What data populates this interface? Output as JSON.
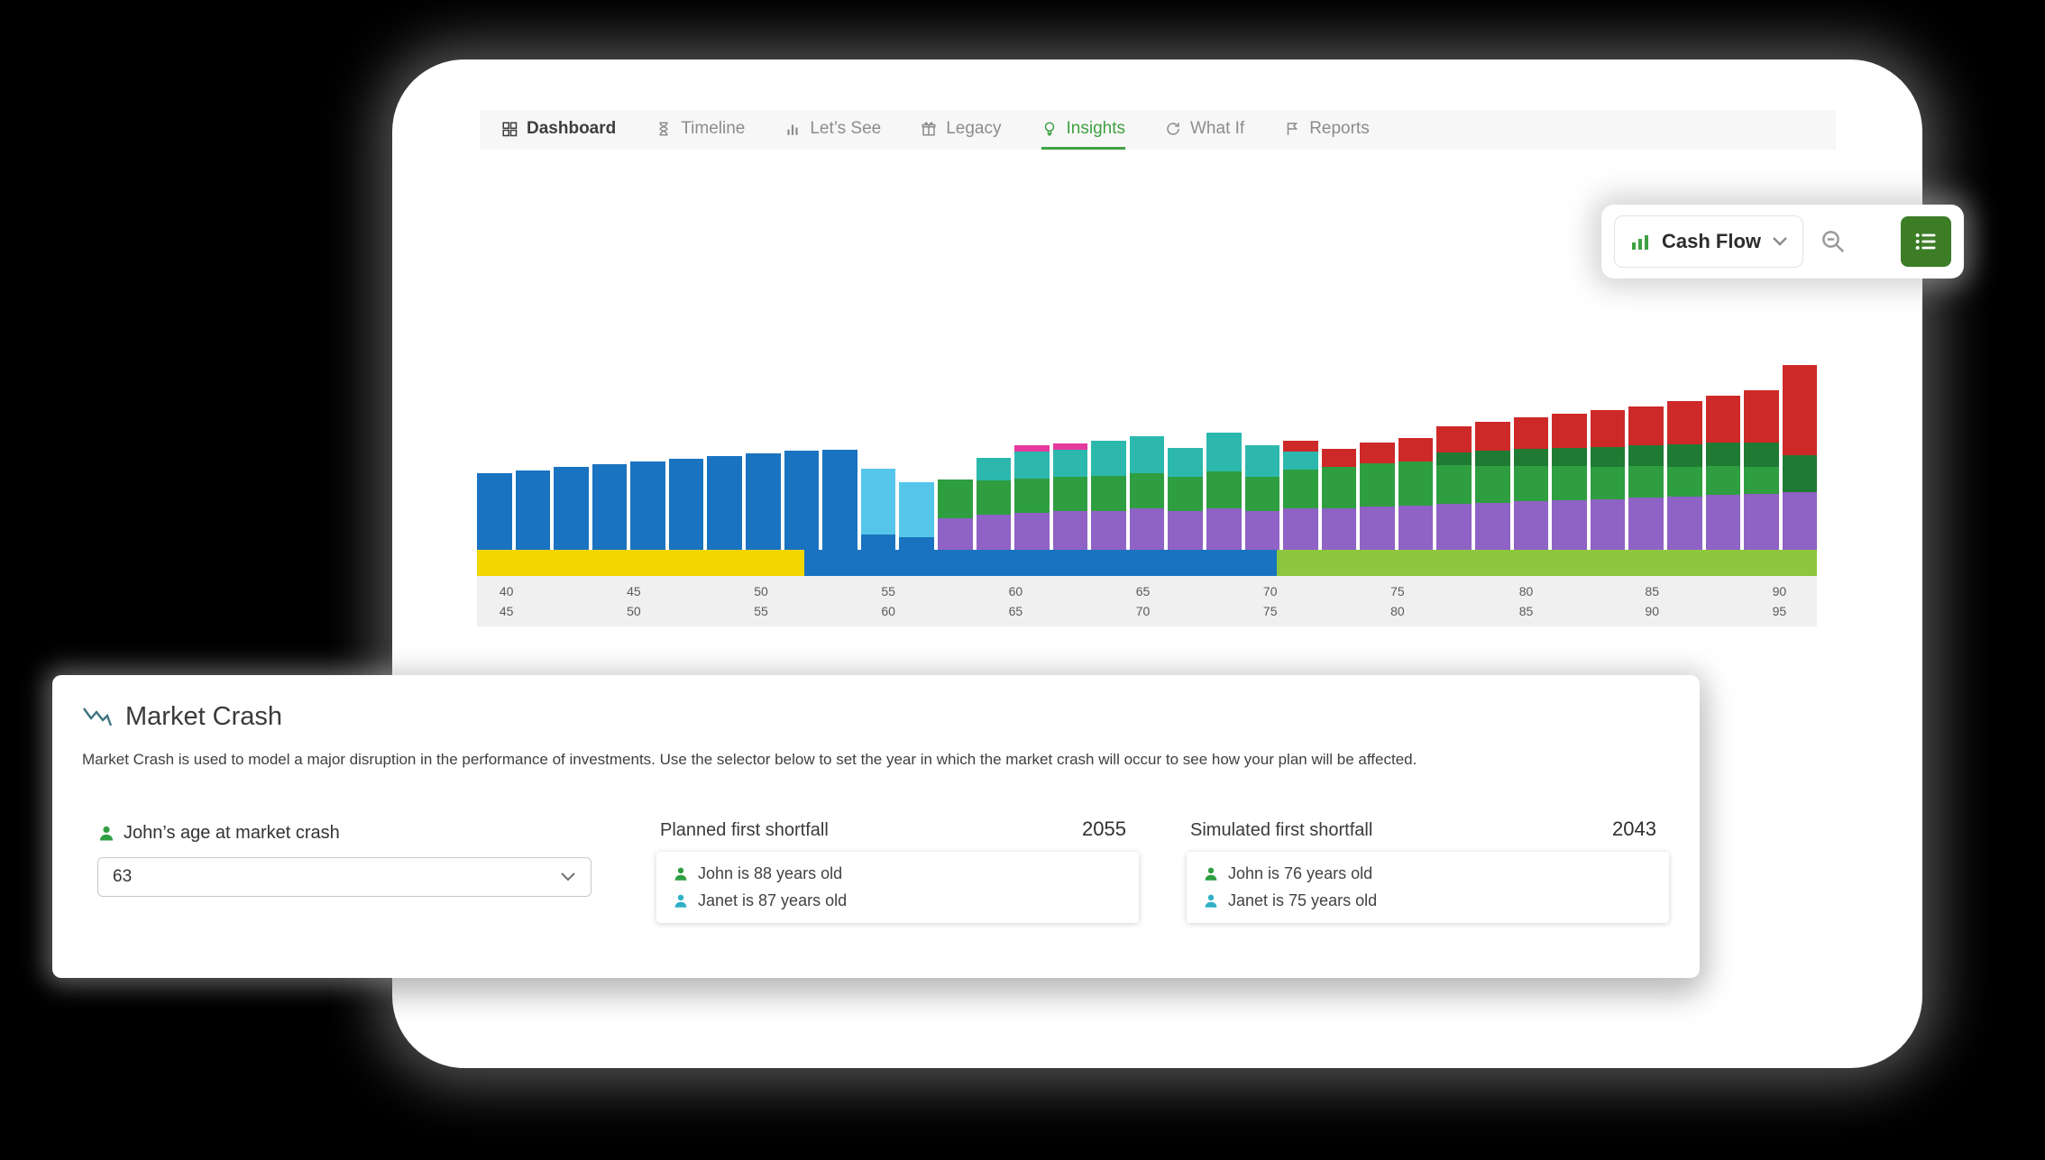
{
  "nav": {
    "tabs": [
      {
        "label": "Dashboard",
        "active": false,
        "emphasis": true
      },
      {
        "label": "Timeline",
        "active": false,
        "emphasis": false
      },
      {
        "label": "Let’s See",
        "active": false,
        "emphasis": false
      },
      {
        "label": "Legacy",
        "active": false,
        "emphasis": false
      },
      {
        "label": "Insights",
        "active": true,
        "emphasis": false
      },
      {
        "label": "What If",
        "active": false,
        "emphasis": false
      },
      {
        "label": "Reports",
        "active": false,
        "emphasis": false
      }
    ]
  },
  "toolbar": {
    "chart_selector_label": "Cash Flow"
  },
  "chart_data": {
    "type": "bar",
    "stacked": true,
    "title": "Cash Flow",
    "units": "pixel-estimated heights (chart shows no y-axis labels)",
    "legend": "none shown",
    "colors": {
      "blue": "#1a73c0",
      "cyan": "#55c6ea",
      "teal": "#2cb8ad",
      "green": "#2f9e41",
      "darkgreen": "#1f7a33",
      "purple": "#8f62c5",
      "pink": "#e5399e",
      "red": "#ce2929"
    },
    "bars": [
      [
        [
          "blue",
          85
        ]
      ],
      [
        [
          "blue",
          88
        ]
      ],
      [
        [
          "blue",
          92
        ]
      ],
      [
        [
          "blue",
          95
        ]
      ],
      [
        [
          "blue",
          98
        ]
      ],
      [
        [
          "blue",
          101
        ]
      ],
      [
        [
          "blue",
          104
        ]
      ],
      [
        [
          "blue",
          107
        ]
      ],
      [
        [
          "blue",
          110
        ]
      ],
      [
        [
          "blue",
          111
        ]
      ],
      [
        [
          "blue",
          17
        ],
        [
          "cyan",
          73
        ]
      ],
      [
        [
          "blue",
          14
        ],
        [
          "cyan",
          61
        ]
      ],
      [
        [
          "purple",
          35
        ],
        [
          "green",
          43
        ]
      ],
      [
        [
          "purple",
          39
        ],
        [
          "green",
          38
        ],
        [
          "teal",
          25
        ]
      ],
      [
        [
          "purple",
          41
        ],
        [
          "green",
          38
        ],
        [
          "teal",
          30
        ],
        [
          "pink",
          7
        ]
      ],
      [
        [
          "purple",
          43
        ],
        [
          "green",
          38
        ],
        [
          "teal",
          30
        ],
        [
          "pink",
          7
        ]
      ],
      [
        [
          "purple",
          43
        ],
        [
          "green",
          39
        ],
        [
          "teal",
          39
        ]
      ],
      [
        [
          "purple",
          46
        ],
        [
          "green",
          39
        ],
        [
          "teal",
          41
        ]
      ],
      [
        [
          "purple",
          43
        ],
        [
          "green",
          38
        ],
        [
          "teal",
          32
        ]
      ],
      [
        [
          "purple",
          46
        ],
        [
          "green",
          41
        ],
        [
          "teal",
          43
        ]
      ],
      [
        [
          "purple",
          43
        ],
        [
          "green",
          38
        ],
        [
          "teal",
          35
        ]
      ],
      [
        [
          "purple",
          46
        ],
        [
          "green",
          43
        ],
        [
          "teal",
          20
        ],
        [
          "red",
          12
        ]
      ],
      [
        [
          "purple",
          46
        ],
        [
          "green",
          46
        ],
        [
          "red",
          20
        ]
      ],
      [
        [
          "purple",
          48
        ],
        [
          "green",
          48
        ],
        [
          "red",
          23
        ]
      ],
      [
        [
          "purple",
          49
        ],
        [
          "green",
          49
        ],
        [
          "red",
          26
        ]
      ],
      [
        [
          "purple",
          51
        ],
        [
          "green",
          43
        ],
        [
          "darkgreen",
          14
        ],
        [
          "red",
          29
        ]
      ],
      [
        [
          "purple",
          52
        ],
        [
          "green",
          41
        ],
        [
          "darkgreen",
          17
        ],
        [
          "red",
          32
        ]
      ],
      [
        [
          "purple",
          54
        ],
        [
          "green",
          39
        ],
        [
          "darkgreen",
          19
        ],
        [
          "red",
          35
        ]
      ],
      [
        [
          "purple",
          55
        ],
        [
          "green",
          38
        ],
        [
          "darkgreen",
          20
        ],
        [
          "red",
          38
        ]
      ],
      [
        [
          "purple",
          56
        ],
        [
          "green",
          36
        ],
        [
          "darkgreen",
          22
        ],
        [
          "red",
          41
        ]
      ],
      [
        [
          "purple",
          58
        ],
        [
          "green",
          35
        ],
        [
          "darkgreen",
          23
        ],
        [
          "red",
          43
        ]
      ],
      [
        [
          "purple",
          59
        ],
        [
          "green",
          33
        ],
        [
          "darkgreen",
          25
        ],
        [
          "red",
          48
        ]
      ],
      [
        [
          "purple",
          61
        ],
        [
          "green",
          32
        ],
        [
          "darkgreen",
          26
        ],
        [
          "red",
          52
        ]
      ],
      [
        [
          "purple",
          62
        ],
        [
          "green",
          30
        ],
        [
          "darkgreen",
          27
        ],
        [
          "red",
          58
        ]
      ],
      [
        [
          "purple",
          64
        ],
        [
          "darkgreen",
          41
        ],
        [
          "red",
          100
        ]
      ]
    ],
    "phase_band": [
      {
        "color": "#f2d600",
        "pct": 24.4
      },
      {
        "color": "#1a73c0",
        "pct": 35.3
      },
      {
        "color": "#8dc63f",
        "pct": 40.3
      }
    ],
    "x_axis": {
      "ticks": [
        {
          "pct": 2.2,
          "top": "40",
          "bottom": "45"
        },
        {
          "pct": 11.7,
          "top": "45",
          "bottom": "50"
        },
        {
          "pct": 21.2,
          "top": "50",
          "bottom": "55"
        },
        {
          "pct": 30.7,
          "top": "55",
          "bottom": "60"
        },
        {
          "pct": 40.2,
          "top": "60",
          "bottom": "65"
        },
        {
          "pct": 49.7,
          "top": "65",
          "bottom": "70"
        },
        {
          "pct": 59.2,
          "top": "70",
          "bottom": "75"
        },
        {
          "pct": 68.7,
          "top": "75",
          "bottom": "80"
        },
        {
          "pct": 78.3,
          "top": "80",
          "bottom": "85"
        },
        {
          "pct": 87.7,
          "top": "85",
          "bottom": "90"
        },
        {
          "pct": 97.2,
          "top": "90",
          "bottom": "95"
        }
      ]
    }
  },
  "market_crash": {
    "title": "Market Crash",
    "description": "Market Crash is used to model a major disruption in the performance of investments. Use the selector below to set the year in which the market crash will occur to see how your plan will be affected.",
    "selector_label": "John’s age at market crash",
    "selector_value": "63",
    "planned": {
      "label": "Planned first shortfall",
      "year": "2055",
      "rows": [
        {
          "person": "john",
          "text": "John is 88 years old"
        },
        {
          "person": "janet",
          "text": "Janet is 87 years old"
        }
      ]
    },
    "simulated": {
      "label": "Simulated first shortfall",
      "year": "2043",
      "rows": [
        {
          "person": "john",
          "text": "John is 76 years old"
        },
        {
          "person": "janet",
          "text": "Janet is 75 years old"
        }
      ]
    },
    "person_colors": {
      "john": "#2f9e41",
      "janet": "#2fb0c7"
    }
  }
}
